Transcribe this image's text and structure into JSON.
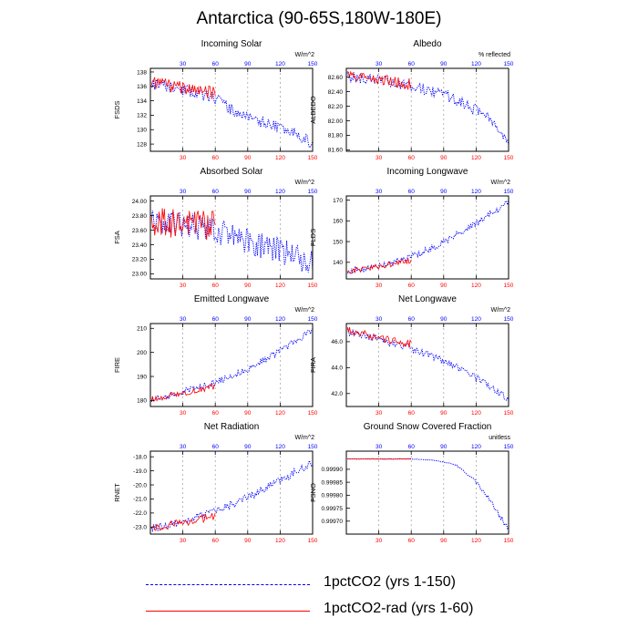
{
  "title": "Antarctica (90-65S,180W-180E)",
  "colors": {
    "s1": "#0000ff",
    "s2": "#ff0000",
    "xtick_bottom": "#ff0000",
    "xtick_top": "#0000ff",
    "grid": "#999999"
  },
  "legend": [
    {
      "label": "1pctCO2 (yrs 1-150)",
      "color": "#0000ff",
      "style": "dashed"
    },
    {
      "label": "1pctCO2-rad (yrs 1-60)",
      "color": "#ff0000",
      "style": "solid"
    }
  ],
  "chart_data": [
    {
      "type": "line",
      "title": "Incoming Solar",
      "unit": "W/m^2",
      "ylabel": "FSDS",
      "xlim": [
        0,
        150
      ],
      "xticks": [
        30,
        60,
        90,
        120,
        150
      ],
      "ylim": [
        127,
        138.5
      ],
      "yticks": [
        128,
        130,
        132,
        134,
        136,
        138
      ],
      "ydecimals": 0,
      "series": [
        {
          "name": "1pctCO2 (yrs 1-150)",
          "years": [
            1,
            150
          ],
          "points": [
            [
              0,
              136.5
            ],
            [
              10,
              136.0
            ],
            [
              20,
              135.8
            ],
            [
              30,
              135.4
            ],
            [
              40,
              135.2
            ],
            [
              50,
              134.8
            ],
            [
              60,
              134.3
            ],
            [
              70,
              133.3
            ],
            [
              80,
              132.3
            ],
            [
              90,
              131.8
            ],
            [
              100,
              131.2
            ],
            [
              110,
              130.8
            ],
            [
              120,
              130.2
            ],
            [
              130,
              129.6
            ],
            [
              140,
              129.0
            ],
            [
              150,
              128.0
            ]
          ],
          "amp": 0.8,
          "seed": 11
        },
        {
          "name": "1pctCO2-rad (yrs 1-60)",
          "years": [
            1,
            60
          ],
          "points": [
            [
              0,
              136.6
            ],
            [
              20,
              136.0
            ],
            [
              40,
              135.6
            ],
            [
              60,
              135.0
            ]
          ],
          "amp": 0.9,
          "seed": 12
        }
      ]
    },
    {
      "type": "line",
      "title": "Albedo",
      "unit": "% reflected",
      "ylabel": "ALBEDO",
      "xlim": [
        0,
        150
      ],
      "xticks": [
        30,
        60,
        90,
        120,
        150
      ],
      "ylim": [
        81.58,
        82.72
      ],
      "yticks": [
        81.6,
        81.8,
        82.0,
        82.2,
        82.4,
        82.6
      ],
      "ydecimals": 2,
      "series": [
        {
          "name": "1pctCO2 (yrs 1-150)",
          "years": [
            1,
            150
          ],
          "points": [
            [
              0,
              82.6
            ],
            [
              20,
              82.57
            ],
            [
              40,
              82.53
            ],
            [
              60,
              82.47
            ],
            [
              75,
              82.42
            ],
            [
              90,
              82.36
            ],
            [
              105,
              82.28
            ],
            [
              120,
              82.15
            ],
            [
              130,
              82.05
            ],
            [
              140,
              81.93
            ],
            [
              150,
              81.68
            ]
          ],
          "amp": 0.08,
          "seed": 21
        },
        {
          "name": "1pctCO2-rad (yrs 1-60)",
          "years": [
            1,
            60
          ],
          "points": [
            [
              0,
              82.6
            ],
            [
              30,
              82.56
            ],
            [
              60,
              82.5
            ]
          ],
          "amp": 0.08,
          "seed": 22
        }
      ]
    },
    {
      "type": "line",
      "title": "Absorbed Solar",
      "unit": "W/m^2",
      "ylabel": "FSA",
      "xlim": [
        0,
        150
      ],
      "xticks": [
        30,
        60,
        90,
        120,
        150
      ],
      "ylim": [
        22.93,
        24.07
      ],
      "yticks": [
        23.0,
        23.2,
        23.4,
        23.6,
        23.8,
        24.0
      ],
      "ydecimals": 2,
      "series": [
        {
          "name": "1pctCO2 (yrs 1-150)",
          "years": [
            1,
            150
          ],
          "points": [
            [
              0,
              23.75
            ],
            [
              30,
              23.68
            ],
            [
              60,
              23.6
            ],
            [
              90,
              23.45
            ],
            [
              120,
              23.32
            ],
            [
              150,
              23.15
            ]
          ],
          "amp": 0.18,
          "seed": 31
        },
        {
          "name": "1pctCO2-rad (yrs 1-60)",
          "years": [
            1,
            60
          ],
          "points": [
            [
              0,
              23.72
            ],
            [
              30,
              23.68
            ],
            [
              60,
              23.66
            ]
          ],
          "amp": 0.2,
          "seed": 32
        }
      ]
    },
    {
      "type": "line",
      "title": "Incoming Longwave",
      "unit": "W/m^2",
      "ylabel": "FLDS",
      "xlim": [
        0,
        150
      ],
      "xticks": [
        30,
        60,
        90,
        120,
        150
      ],
      "ylim": [
        132,
        172
      ],
      "yticks": [
        140,
        150,
        160,
        170
      ],
      "ydecimals": 0,
      "series": [
        {
          "name": "1pctCO2 (yrs 1-150)",
          "years": [
            1,
            150
          ],
          "points": [
            [
              0,
              135.5
            ],
            [
              30,
              138.5
            ],
            [
              60,
              142.5
            ],
            [
              90,
              149.5
            ],
            [
              120,
              158.5
            ],
            [
              150,
              169.0
            ]
          ],
          "amp": 1.6,
          "seed": 41
        },
        {
          "name": "1pctCO2-rad (yrs 1-60)",
          "years": [
            1,
            60
          ],
          "points": [
            [
              0,
              135.5
            ],
            [
              30,
              138.0
            ],
            [
              60,
              141.0
            ]
          ],
          "amp": 1.4,
          "seed": 42
        }
      ]
    },
    {
      "type": "line",
      "title": "Emitted Longwave",
      "unit": "W/m^2",
      "ylabel": "FIRE",
      "xlim": [
        0,
        150
      ],
      "xticks": [
        30,
        60,
        90,
        120,
        150
      ],
      "ylim": [
        177.5,
        212
      ],
      "yticks": [
        180,
        190,
        200,
        210
      ],
      "ydecimals": 0,
      "series": [
        {
          "name": "1pctCO2 (yrs 1-150)",
          "years": [
            1,
            150
          ],
          "points": [
            [
              0,
              180.5
            ],
            [
              30,
              183.5
            ],
            [
              60,
              187.5
            ],
            [
              90,
              193.0
            ],
            [
              120,
              200.5
            ],
            [
              150,
              209.5
            ]
          ],
          "amp": 1.4,
          "seed": 51
        },
        {
          "name": "1pctCO2-rad (yrs 1-60)",
          "years": [
            1,
            60
          ],
          "points": [
            [
              0,
              180.5
            ],
            [
              30,
              183.0
            ],
            [
              60,
              186.0
            ]
          ],
          "amp": 1.3,
          "seed": 52
        }
      ]
    },
    {
      "type": "line",
      "title": "Net Longwave",
      "unit": "W/m^2",
      "ylabel": "FIRA",
      "xlim": [
        0,
        150
      ],
      "xticks": [
        30,
        60,
        90,
        120,
        150
      ],
      "ylim": [
        41,
        47.4
      ],
      "yticks": [
        42.0,
        44.0,
        46.0
      ],
      "ydecimals": 1,
      "series": [
        {
          "name": "1pctCO2 (yrs 1-150)",
          "years": [
            1,
            150
          ],
          "points": [
            [
              0,
              46.8
            ],
            [
              30,
              46.2
            ],
            [
              60,
              45.5
            ],
            [
              90,
              44.5
            ],
            [
              120,
              43.2
            ],
            [
              150,
              41.5
            ]
          ],
          "amp": 0.3,
          "seed": 61
        },
        {
          "name": "1pctCO2-rad (yrs 1-60)",
          "years": [
            1,
            60
          ],
          "points": [
            [
              0,
              46.9
            ],
            [
              30,
              46.3
            ],
            [
              60,
              45.8
            ]
          ],
          "amp": 0.3,
          "seed": 62
        }
      ]
    },
    {
      "type": "line",
      "title": "Net Radiation",
      "unit": "W/m^2",
      "ylabel": "RNET",
      "xlim": [
        0,
        150
      ],
      "xticks": [
        30,
        60,
        90,
        120,
        150
      ],
      "ylim": [
        -23.5,
        -17.6
      ],
      "yticks": [
        -23.0,
        -22.0,
        -21.0,
        -20.0,
        -19.0,
        -18.0
      ],
      "ydecimals": 1,
      "series": [
        {
          "name": "1pctCO2 (yrs 1-150)",
          "years": [
            1,
            150
          ],
          "points": [
            [
              0,
              -23.1
            ],
            [
              30,
              -22.6
            ],
            [
              60,
              -21.9
            ],
            [
              90,
              -20.9
            ],
            [
              120,
              -19.7
            ],
            [
              150,
              -18.4
            ]
          ],
          "amp": 0.28,
          "seed": 71
        },
        {
          "name": "1pctCO2-rad (yrs 1-60)",
          "years": [
            1,
            60
          ],
          "points": [
            [
              0,
              -23.1
            ],
            [
              30,
              -22.7
            ],
            [
              60,
              -22.2
            ]
          ],
          "amp": 0.28,
          "seed": 72
        }
      ]
    },
    {
      "type": "line",
      "title": "Ground Snow Covered Fraction",
      "unit": "unitless",
      "ylabel": "FSNO",
      "xlim": [
        0,
        150
      ],
      "xticks": [
        30,
        60,
        90,
        120,
        150
      ],
      "ylim": [
        0.99965,
        0.99997
      ],
      "yticks": [
        0.9997,
        0.99975,
        0.9998,
        0.99985,
        0.9999
      ],
      "ydecimals": 5,
      "series": [
        {
          "name": "1pctCO2 (yrs 1-150)",
          "years": [
            1,
            150
          ],
          "points": [
            [
              0,
              0.99994
            ],
            [
              60,
              0.99994
            ],
            [
              80,
              0.999935
            ],
            [
              100,
              0.99992
            ],
            [
              110,
              0.99989
            ],
            [
              120,
              0.99985
            ],
            [
              130,
              0.9998
            ],
            [
              140,
              0.99973
            ],
            [
              150,
              0.99967
            ]
          ],
          "amp": 1.2e-05,
          "seed": 81,
          "ampgrow": true
        },
        {
          "name": "1pctCO2-rad (yrs 1-60)",
          "years": [
            1,
            60
          ],
          "points": [
            [
              0,
              0.99994
            ],
            [
              60,
              0.99994
            ]
          ],
          "amp": 1.5e-06,
          "seed": 82
        }
      ]
    }
  ]
}
